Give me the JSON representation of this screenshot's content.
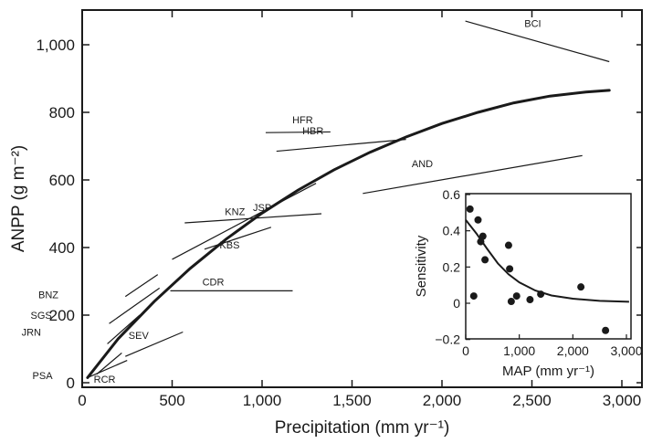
{
  "chart_data": [
    {
      "type": "line",
      "xlabel": "Precipitation (mm yr⁻¹)",
      "ylabel": "ANPP (g m⁻²)",
      "xlim": [
        0,
        3150
      ],
      "ylim": [
        0,
        1100
      ],
      "xticks": [
        0,
        500,
        1000,
        1500,
        2000,
        2500,
        3000
      ],
      "xtick_labels": [
        "0",
        "500",
        "1,000",
        "1,500",
        "2,000",
        "2,500",
        "3,000"
      ],
      "yticks": [
        0,
        200,
        400,
        600,
        800,
        1000
      ],
      "ytick_labels": [
        "0",
        "200",
        "400",
        "600",
        "800",
        "1,000"
      ],
      "grid": false,
      "series": [
        {
          "kind": "curve",
          "color": "#1a1a1a",
          "x": [
            30,
            200,
            400,
            600,
            800,
            1000,
            1200,
            1400,
            1600,
            1800,
            2000,
            2200,
            2400,
            2600,
            2800,
            2930
          ],
          "y": [
            15,
            130,
            240,
            338,
            425,
            502,
            570,
            630,
            682,
            727,
            767,
            800,
            828,
            848,
            860,
            865
          ]
        }
      ],
      "site_segments": [
        {
          "label": "BCI",
          "x": [
            2130,
            2930
          ],
          "y": [
            1070,
            950
          ]
        },
        {
          "label": "HFR",
          "x": [
            1020,
            1380
          ],
          "y": [
            740,
            742
          ]
        },
        {
          "label": "HBR",
          "x": [
            1080,
            1800
          ],
          "y": [
            685,
            720
          ]
        },
        {
          "label": "AND",
          "x": [
            1560,
            2780
          ],
          "y": [
            560,
            672
          ]
        },
        {
          "label": "JSP",
          "x": [
            570,
            1330
          ],
          "y": [
            473,
            500
          ]
        },
        {
          "label": "KNZ",
          "x": [
            500,
            1300
          ],
          "y": [
            365,
            590
          ]
        },
        {
          "label": "KBS",
          "x": [
            680,
            1050
          ],
          "y": [
            395,
            460
          ]
        },
        {
          "label": "BNZ",
          "x": [
            240,
            420
          ],
          "y": [
            255,
            320
          ]
        },
        {
          "label": "SGS",
          "x": [
            150,
            430
          ],
          "y": [
            175,
            280
          ]
        },
        {
          "label": "CDR",
          "x": [
            490,
            1170
          ],
          "y": [
            272,
            272
          ]
        },
        {
          "label": "JRN",
          "x": [
            140,
            320
          ],
          "y": [
            115,
            200
          ]
        },
        {
          "label": "SEV",
          "x": [
            240,
            560
          ],
          "y": [
            78,
            150
          ]
        },
        {
          "label": "PSA",
          "x": [
            80,
            220
          ],
          "y": [
            25,
            88
          ]
        },
        {
          "label": "RCR",
          "x": [
            30,
            250
          ],
          "y": [
            15,
            66
          ]
        }
      ]
    },
    {
      "type": "scatter",
      "xlabel": "MAP (mm yr⁻¹)",
      "ylabel": "Sensitivity",
      "xlim": [
        0,
        3050
      ],
      "ylim": [
        -0.2,
        0.6
      ],
      "xticks": [
        0,
        1000,
        2000,
        3000
      ],
      "xtick_labels": [
        "0",
        "1,000",
        "2,000",
        "3,000"
      ],
      "yticks": [
        -0.2,
        0,
        0.2,
        0.4,
        0.6
      ],
      "ytick_labels": [
        "−0.2",
        "0",
        "0.2",
        "0.4",
        "0.6"
      ],
      "points": {
        "x": [
          80,
          150,
          230,
          280,
          320,
          360,
          800,
          820,
          850,
          950,
          1200,
          1400,
          2150,
          2610
        ],
        "y": [
          0.52,
          0.04,
          0.46,
          0.34,
          0.37,
          0.24,
          0.32,
          0.19,
          0.01,
          0.04,
          0.02,
          0.05,
          0.09,
          -0.15
        ]
      },
      "fit": {
        "x": [
          0,
          200,
          400,
          600,
          800,
          1000,
          1300,
          1600,
          2000,
          2500,
          3050
        ],
        "y": [
          0.46,
          0.385,
          0.3,
          0.22,
          0.16,
          0.115,
          0.07,
          0.043,
          0.025,
          0.013,
          0.008
        ]
      }
    }
  ]
}
